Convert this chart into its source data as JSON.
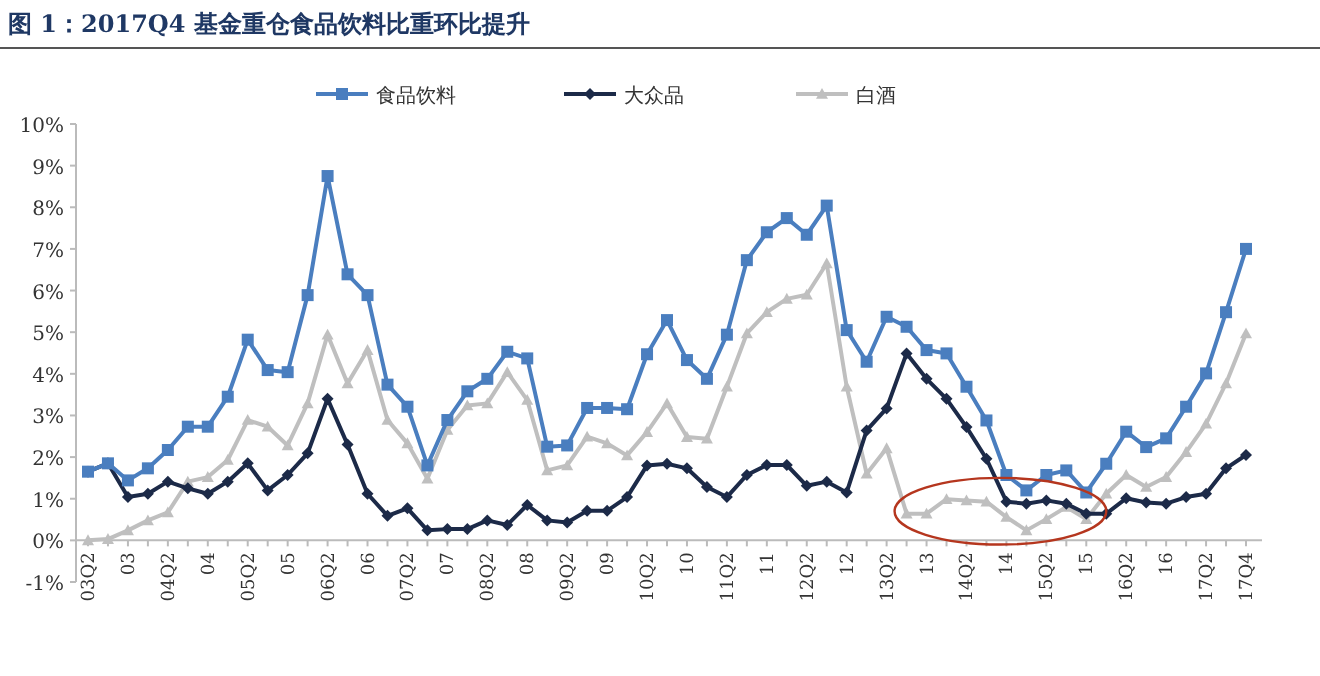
{
  "chart_data": {
    "type": "line",
    "title": "图 1：2017Q4 基金重仓食品饮料比重环比提升",
    "categories": [
      "03Q2",
      null,
      "03",
      null,
      "04Q2",
      null,
      "04",
      null,
      "05Q2",
      null,
      "05",
      null,
      "06Q2",
      null,
      "06",
      null,
      "07Q2",
      null,
      "07",
      null,
      "08Q2",
      null,
      "08",
      null,
      "09Q2",
      null,
      "09",
      null,
      "10Q2",
      null,
      "10",
      null,
      "11Q2",
      null,
      "11",
      null,
      "12Q2",
      null,
      "12",
      null,
      "13Q2",
      null,
      "13",
      null,
      "14Q2",
      null,
      "14",
      null,
      "15Q2",
      null,
      "15",
      null,
      "16Q2",
      null,
      "16",
      null,
      "17Q2",
      null,
      "17Q4"
    ],
    "series": [
      {
        "name": "食品饮料",
        "color": "#4a7ebf",
        "marker": "square",
        "values": [
          1.65,
          1.85,
          1.44,
          1.73,
          2.17,
          2.73,
          2.73,
          3.45,
          4.82,
          4.09,
          4.04,
          5.89,
          8.75,
          6.39,
          5.89,
          3.74,
          3.21,
          1.8,
          2.89,
          3.58,
          3.88,
          4.53,
          4.37,
          2.25,
          2.28,
          3.18,
          3.18,
          3.15,
          4.47,
          5.29,
          4.33,
          3.88,
          4.94,
          6.73,
          7.4,
          7.74,
          7.34,
          8.04,
          5.05,
          4.29,
          5.37,
          5.13,
          4.57,
          4.49,
          3.69,
          2.88,
          1.57,
          1.2,
          1.57,
          1.68,
          1.15,
          1.84,
          2.61,
          2.24,
          2.45,
          3.21,
          4.01,
          5.48,
          7.0
        ]
      },
      {
        "name": "大众品",
        "color": "#1c2a48",
        "marker": "diamond",
        "values": [
          1.65,
          1.85,
          1.04,
          1.12,
          1.41,
          1.25,
          1.12,
          1.41,
          1.85,
          1.2,
          1.57,
          2.09,
          3.4,
          2.3,
          1.12,
          0.59,
          0.77,
          0.24,
          0.27,
          0.27,
          0.48,
          0.37,
          0.85,
          0.48,
          0.43,
          0.71,
          0.71,
          1.04,
          1.8,
          1.84,
          1.73,
          1.28,
          1.04,
          1.57,
          1.81,
          1.81,
          1.31,
          1.41,
          1.15,
          2.64,
          3.17,
          4.49,
          3.88,
          3.4,
          2.72,
          1.96,
          0.93,
          0.88,
          0.96,
          0.88,
          0.64,
          0.64,
          1.01,
          0.91,
          0.88,
          1.04,
          1.12,
          1.73,
          2.05
        ]
      },
      {
        "name": "白酒",
        "color": "#bfbfbf",
        "marker": "triangle",
        "values": [
          0.0,
          0.03,
          0.24,
          0.48,
          0.67,
          1.41,
          1.52,
          1.93,
          2.89,
          2.73,
          2.28,
          3.29,
          4.94,
          3.77,
          4.57,
          2.89,
          2.33,
          1.48,
          2.65,
          3.24,
          3.29,
          4.04,
          3.37,
          1.68,
          1.8,
          2.49,
          2.33,
          2.04,
          2.6,
          3.29,
          2.48,
          2.44,
          3.69,
          4.97,
          5.48,
          5.8,
          5.9,
          6.65,
          3.69,
          1.6,
          2.21,
          0.64,
          0.64,
          0.99,
          0.96,
          0.93,
          0.56,
          0.24,
          0.51,
          0.8,
          0.51,
          1.12,
          1.57,
          1.28,
          1.52,
          2.12,
          2.8,
          3.77,
          4.97
        ]
      }
    ],
    "ylim": [
      -1,
      10
    ],
    "yticks": [
      {
        "value": -1,
        "label": "-1%"
      },
      {
        "value": 0,
        "label": "0%"
      },
      {
        "value": 1,
        "label": "1%"
      },
      {
        "value": 2,
        "label": "2%"
      },
      {
        "value": 3,
        "label": "3%"
      },
      {
        "value": 4,
        "label": "4%"
      },
      {
        "value": 5,
        "label": "5%"
      },
      {
        "value": 6,
        "label": "6%"
      },
      {
        "value": 7,
        "label": "7%"
      },
      {
        "value": 8,
        "label": "8%"
      },
      {
        "value": 9,
        "label": "9%"
      },
      {
        "value": 10,
        "label": "10%"
      }
    ],
    "grid": false,
    "legend": "top",
    "line_style": "solid"
  }
}
